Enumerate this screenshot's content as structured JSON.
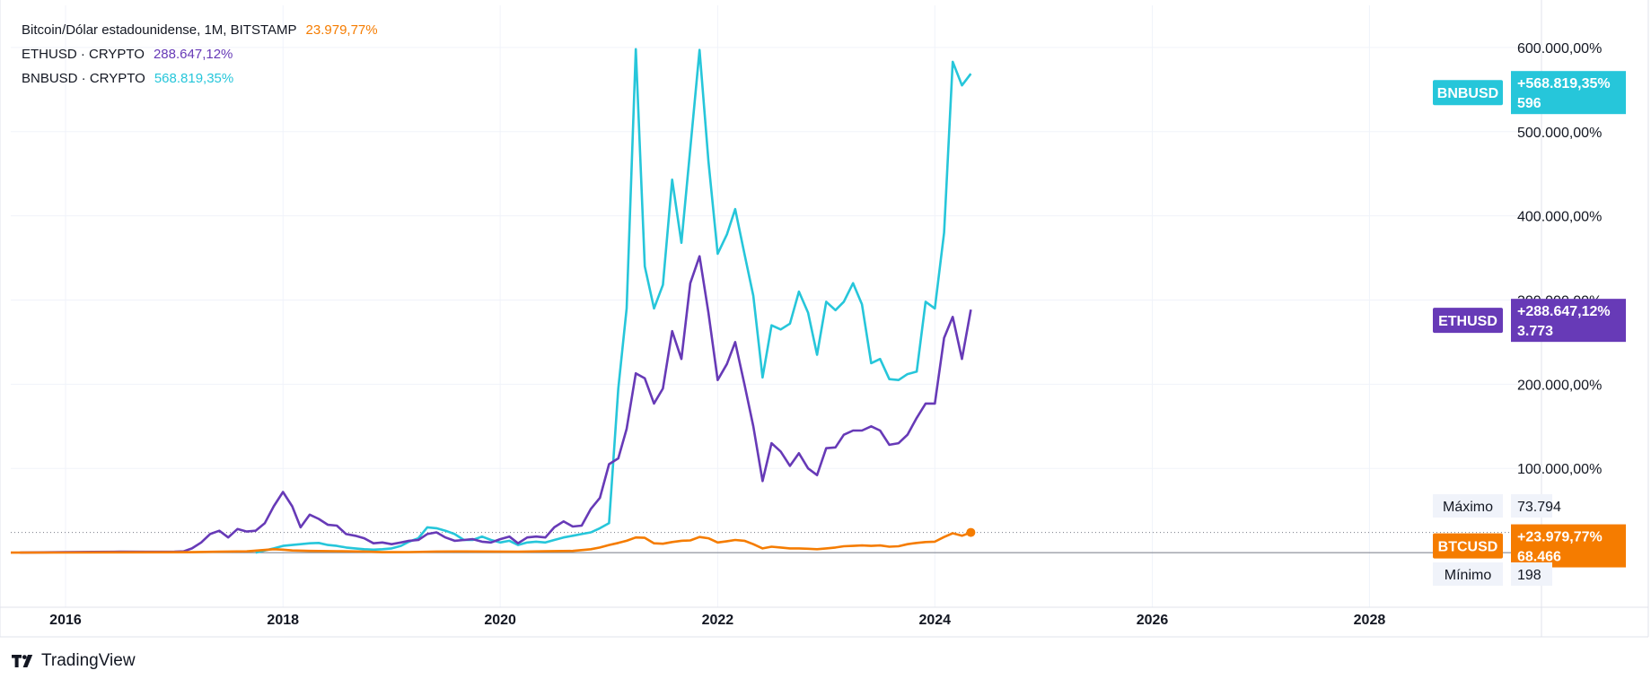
{
  "legend": [
    {
      "name": "Bitcoin/Dólar estadounidense, 1M, BITSTAMP",
      "value": "23.979,77%",
      "color": "#f57c00"
    },
    {
      "name": "ETHUSD · CRYPTO",
      "value": "288.647,12%",
      "color": "#673ab7"
    },
    {
      "name": "BNBUSD · CRYPTO",
      "value": "568.819,35%",
      "color": "#26c6da"
    }
  ],
  "price_tags": {
    "bnb": {
      "symbol": "BNBUSD",
      "change": "+568.819,35%",
      "price": "596"
    },
    "eth": {
      "symbol": "ETHUSD",
      "change": "+288.647,12%",
      "price": "3.773"
    },
    "btc": {
      "symbol": "BTCUSD",
      "change": "+23.979,77%",
      "price": "68.466"
    }
  },
  "max_label": {
    "label": "Máximo",
    "value": "73.794"
  },
  "min_label": {
    "label": "Mínimo",
    "value": "198"
  },
  "brand": {
    "name": "TradingView"
  },
  "chart_data": {
    "type": "line",
    "y_scale": "percent",
    "ylim": [
      -50000,
      650000
    ],
    "xlim": [
      "2015-07-01",
      "2029-08-01"
    ],
    "y_ticks": [
      {
        "value": 100000,
        "label": "100.000,00%"
      },
      {
        "value": 200000,
        "label": "200.000,00%"
      },
      {
        "value": 300000,
        "label": "300.000,00%"
      },
      {
        "value": 400000,
        "label": "400.000,00%"
      },
      {
        "value": 500000,
        "label": "500.000,00%"
      },
      {
        "value": 600000,
        "label": "600.000,00%"
      }
    ],
    "x_ticks": [
      {
        "value": 2016,
        "label": "2016"
      },
      {
        "value": 2018,
        "label": "2018"
      },
      {
        "value": 2020,
        "label": "2020"
      },
      {
        "value": 2022,
        "label": "2022"
      },
      {
        "value": 2024,
        "label": "2024"
      },
      {
        "value": 2026,
        "label": "2026"
      },
      {
        "value": 2028,
        "label": "2028"
      }
    ],
    "grid": true,
    "series": [
      {
        "key": "bnb",
        "color": "#26c6da",
        "points": [
          [
            "2017-10-01",
            0
          ],
          [
            "2017-12-01",
            5000
          ],
          [
            "2018-01-01",
            8000
          ],
          [
            "2018-02-01",
            9000
          ],
          [
            "2018-03-01",
            10000
          ],
          [
            "2018-04-01",
            11000
          ],
          [
            "2018-05-01",
            11500
          ],
          [
            "2018-06-01",
            9000
          ],
          [
            "2018-07-01",
            8000
          ],
          [
            "2018-08-01",
            6000
          ],
          [
            "2018-09-01",
            5000
          ],
          [
            "2018-10-01",
            4000
          ],
          [
            "2018-11-01",
            3500
          ],
          [
            "2018-12-01",
            4000
          ],
          [
            "2019-01-01",
            5000
          ],
          [
            "2019-02-01",
            8000
          ],
          [
            "2019-03-01",
            13000
          ],
          [
            "2019-04-01",
            17000
          ],
          [
            "2019-05-01",
            30000
          ],
          [
            "2019-06-01",
            29000
          ],
          [
            "2019-07-01",
            26000
          ],
          [
            "2019-08-01",
            22000
          ],
          [
            "2019-09-01",
            15000
          ],
          [
            "2019-10-01",
            15000
          ],
          [
            "2019-11-01",
            19000
          ],
          [
            "2019-12-01",
            15000
          ],
          [
            "2020-01-01",
            12000
          ],
          [
            "2020-02-01",
            14000
          ],
          [
            "2020-03-01",
            9000
          ],
          [
            "2020-04-01",
            12000
          ],
          [
            "2020-05-01",
            13000
          ],
          [
            "2020-06-01",
            12000
          ],
          [
            "2020-07-01",
            15000
          ],
          [
            "2020-08-01",
            18000
          ],
          [
            "2020-09-01",
            20000
          ],
          [
            "2020-10-01",
            22000
          ],
          [
            "2020-11-01",
            24000
          ],
          [
            "2020-12-01",
            29000
          ],
          [
            "2021-01-01",
            35000
          ],
          [
            "2021-02-01",
            195000
          ],
          [
            "2021-03-01",
            290000
          ],
          [
            "2021-04-01",
            598000
          ],
          [
            "2021-05-01",
            340000
          ],
          [
            "2021-06-01",
            290000
          ],
          [
            "2021-07-01",
            318000
          ],
          [
            "2021-08-01",
            443000
          ],
          [
            "2021-09-01",
            368000
          ],
          [
            "2021-10-01",
            480000
          ],
          [
            "2021-11-01",
            597000
          ],
          [
            "2021-12-01",
            465000
          ],
          [
            "2022-01-01",
            355000
          ],
          [
            "2022-02-01",
            378000
          ],
          [
            "2022-03-01",
            408000
          ],
          [
            "2022-04-01",
            355000
          ],
          [
            "2022-05-01",
            305000
          ],
          [
            "2022-06-01",
            208000
          ],
          [
            "2022-07-01",
            270000
          ],
          [
            "2022-08-01",
            265000
          ],
          [
            "2022-09-01",
            272000
          ],
          [
            "2022-10-01",
            310000
          ],
          [
            "2022-11-01",
            285000
          ],
          [
            "2022-12-01",
            235000
          ],
          [
            "2023-01-01",
            298000
          ],
          [
            "2023-02-01",
            288000
          ],
          [
            "2023-03-01",
            298000
          ],
          [
            "2023-04-01",
            320000
          ],
          [
            "2023-05-01",
            295000
          ],
          [
            "2023-06-01",
            225000
          ],
          [
            "2023-07-01",
            230000
          ],
          [
            "2023-08-01",
            206000
          ],
          [
            "2023-09-01",
            205000
          ],
          [
            "2023-10-01",
            212000
          ],
          [
            "2023-11-01",
            215000
          ],
          [
            "2023-12-01",
            298000
          ],
          [
            "2024-01-01",
            290000
          ],
          [
            "2024-02-01",
            380000
          ],
          [
            "2024-03-01",
            583000
          ],
          [
            "2024-04-01",
            555000
          ],
          [
            "2024-05-01",
            568819
          ]
        ]
      },
      {
        "key": "eth",
        "color": "#673ab7",
        "points": [
          [
            "2015-08-01",
            0
          ],
          [
            "2016-01-01",
            500
          ],
          [
            "2016-04-01",
            800
          ],
          [
            "2016-07-01",
            1000
          ],
          [
            "2016-10-01",
            900
          ],
          [
            "2017-01-01",
            1000
          ],
          [
            "2017-02-01",
            1500
          ],
          [
            "2017-03-01",
            5000
          ],
          [
            "2017-04-01",
            12000
          ],
          [
            "2017-05-01",
            22000
          ],
          [
            "2017-06-01",
            26000
          ],
          [
            "2017-07-01",
            18000
          ],
          [
            "2017-08-01",
            28000
          ],
          [
            "2017-09-01",
            25000
          ],
          [
            "2017-10-01",
            26000
          ],
          [
            "2017-11-01",
            35000
          ],
          [
            "2017-12-01",
            55000
          ],
          [
            "2018-01-01",
            72000
          ],
          [
            "2018-02-01",
            55000
          ],
          [
            "2018-03-01",
            30000
          ],
          [
            "2018-04-01",
            45000
          ],
          [
            "2018-05-01",
            40000
          ],
          [
            "2018-06-01",
            33000
          ],
          [
            "2018-07-01",
            32000
          ],
          [
            "2018-08-01",
            22000
          ],
          [
            "2018-09-01",
            20000
          ],
          [
            "2018-10-01",
            17000
          ],
          [
            "2018-11-01",
            11000
          ],
          [
            "2018-12-01",
            12000
          ],
          [
            "2019-01-01",
            10000
          ],
          [
            "2019-02-01",
            12000
          ],
          [
            "2019-03-01",
            14000
          ],
          [
            "2019-04-01",
            15000
          ],
          [
            "2019-05-01",
            22000
          ],
          [
            "2019-06-01",
            24000
          ],
          [
            "2019-07-01",
            18000
          ],
          [
            "2019-08-01",
            14000
          ],
          [
            "2019-09-01",
            15000
          ],
          [
            "2019-10-01",
            16000
          ],
          [
            "2019-11-01",
            13000
          ],
          [
            "2019-12-01",
            12000
          ],
          [
            "2020-01-01",
            16000
          ],
          [
            "2020-02-01",
            19000
          ],
          [
            "2020-03-01",
            11000
          ],
          [
            "2020-04-01",
            18000
          ],
          [
            "2020-05-01",
            19000
          ],
          [
            "2020-06-01",
            18000
          ],
          [
            "2020-07-01",
            30000
          ],
          [
            "2020-08-01",
            37000
          ],
          [
            "2020-09-01",
            31000
          ],
          [
            "2020-10-01",
            32000
          ],
          [
            "2020-11-01",
            52000
          ],
          [
            "2020-12-01",
            65000
          ],
          [
            "2021-01-01",
            105000
          ],
          [
            "2021-02-01",
            112000
          ],
          [
            "2021-03-01",
            147000
          ],
          [
            "2021-04-01",
            213000
          ],
          [
            "2021-05-01",
            207000
          ],
          [
            "2021-06-01",
            177000
          ],
          [
            "2021-07-01",
            195000
          ],
          [
            "2021-08-01",
            263000
          ],
          [
            "2021-09-01",
            230000
          ],
          [
            "2021-10-01",
            320000
          ],
          [
            "2021-11-01",
            352000
          ],
          [
            "2021-12-01",
            285000
          ],
          [
            "2022-01-01",
            205000
          ],
          [
            "2022-02-01",
            224000
          ],
          [
            "2022-03-01",
            250000
          ],
          [
            "2022-04-01",
            200000
          ],
          [
            "2022-05-01",
            150000
          ],
          [
            "2022-06-01",
            85000
          ],
          [
            "2022-07-01",
            130000
          ],
          [
            "2022-08-01",
            120000
          ],
          [
            "2022-09-01",
            103000
          ],
          [
            "2022-10-01",
            118000
          ],
          [
            "2022-11-01",
            100000
          ],
          [
            "2022-12-01",
            92000
          ],
          [
            "2023-01-01",
            124000
          ],
          [
            "2023-02-01",
            125000
          ],
          [
            "2023-03-01",
            140000
          ],
          [
            "2023-04-01",
            145000
          ],
          [
            "2023-05-01",
            145000
          ],
          [
            "2023-06-01",
            150000
          ],
          [
            "2023-07-01",
            145000
          ],
          [
            "2023-08-01",
            128000
          ],
          [
            "2023-09-01",
            130000
          ],
          [
            "2023-10-01",
            140000
          ],
          [
            "2023-11-01",
            160000
          ],
          [
            "2023-12-01",
            177000
          ],
          [
            "2024-01-01",
            177000
          ],
          [
            "2024-02-01",
            255000
          ],
          [
            "2024-03-01",
            280000
          ],
          [
            "2024-04-01",
            230000
          ],
          [
            "2024-05-01",
            288647
          ]
        ]
      },
      {
        "key": "btc",
        "color": "#f57c00",
        "points": [
          [
            "2015-07-01",
            0
          ],
          [
            "2016-01-01",
            50
          ],
          [
            "2016-06-01",
            300
          ],
          [
            "2016-12-01",
            400
          ],
          [
            "2017-03-01",
            500
          ],
          [
            "2017-06-01",
            1000
          ],
          [
            "2017-09-01",
            1500
          ],
          [
            "2017-12-01",
            4000
          ],
          [
            "2018-01-01",
            3500
          ],
          [
            "2018-02-01",
            2500
          ],
          [
            "2018-04-01",
            2000
          ],
          [
            "2018-07-01",
            1700
          ],
          [
            "2018-10-01",
            1200
          ],
          [
            "2018-12-01",
            500
          ],
          [
            "2019-03-01",
            600
          ],
          [
            "2019-06-01",
            1200
          ],
          [
            "2019-09-01",
            1400
          ],
          [
            "2019-12-01",
            1200
          ],
          [
            "2020-03-01",
            1000
          ],
          [
            "2020-06-01",
            1600
          ],
          [
            "2020-09-01",
            2000
          ],
          [
            "2020-11-01",
            4000
          ],
          [
            "2020-12-01",
            6000
          ],
          [
            "2021-01-01",
            9000
          ],
          [
            "2021-02-01",
            11500
          ],
          [
            "2021-03-01",
            14000
          ],
          [
            "2021-04-01",
            18000
          ],
          [
            "2021-05-01",
            17500
          ],
          [
            "2021-06-01",
            11000
          ],
          [
            "2021-07-01",
            10500
          ],
          [
            "2021-08-01",
            12500
          ],
          [
            "2021-09-01",
            14000
          ],
          [
            "2021-10-01",
            14500
          ],
          [
            "2021-11-01",
            18500
          ],
          [
            "2021-12-01",
            17000
          ],
          [
            "2022-01-01",
            12000
          ],
          [
            "2022-02-01",
            13500
          ],
          [
            "2022-03-01",
            15000
          ],
          [
            "2022-04-01",
            14000
          ],
          [
            "2022-05-01",
            10000
          ],
          [
            "2022-06-01",
            5000
          ],
          [
            "2022-07-01",
            7000
          ],
          [
            "2022-08-01",
            6000
          ],
          [
            "2022-09-01",
            5000
          ],
          [
            "2022-10-01",
            5000
          ],
          [
            "2022-11-01",
            4500
          ],
          [
            "2022-12-01",
            4000
          ],
          [
            "2023-01-01",
            5000
          ],
          [
            "2023-02-01",
            6000
          ],
          [
            "2023-03-01",
            7500
          ],
          [
            "2023-04-01",
            8000
          ],
          [
            "2023-05-01",
            8500
          ],
          [
            "2023-06-01",
            8000
          ],
          [
            "2023-07-01",
            8500
          ],
          [
            "2023-08-01",
            7000
          ],
          [
            "2023-09-01",
            7500
          ],
          [
            "2023-10-01",
            10000
          ],
          [
            "2023-11-01",
            11500
          ],
          [
            "2023-12-01",
            12500
          ],
          [
            "2024-01-01",
            13000
          ],
          [
            "2024-02-01",
            18500
          ],
          [
            "2024-03-01",
            23000
          ],
          [
            "2024-04-01",
            20000
          ],
          [
            "2024-05-01",
            23979
          ]
        ]
      }
    ]
  }
}
